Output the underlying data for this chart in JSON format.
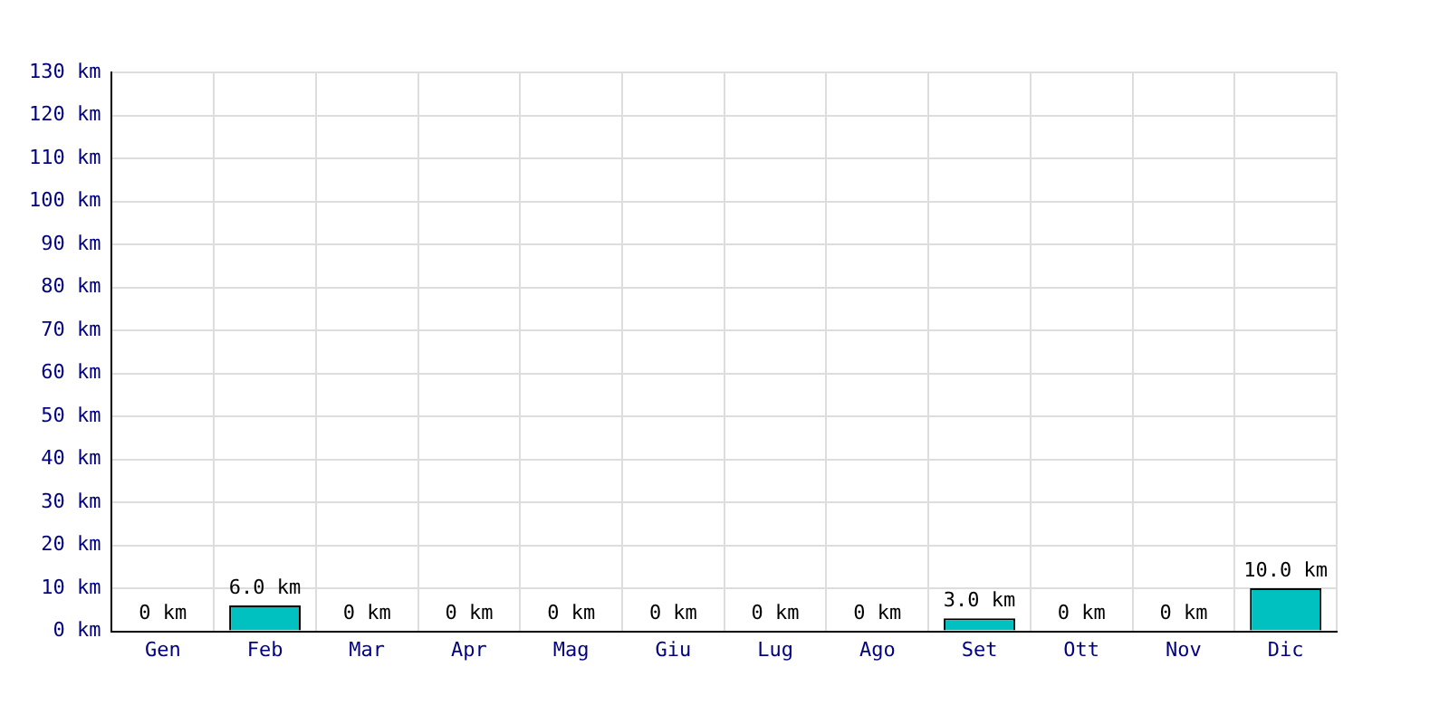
{
  "chart_data": {
    "type": "bar",
    "categories": [
      "Gen",
      "Feb",
      "Mar",
      "Apr",
      "Mag",
      "Giu",
      "Lug",
      "Ago",
      "Set",
      "Ott",
      "Nov",
      "Dic"
    ],
    "values": [
      0,
      6.0,
      0,
      0,
      0,
      0,
      0,
      0,
      3.0,
      0,
      0,
      10.0
    ],
    "value_labels": [
      "0 km",
      "6.0 km",
      "0 km",
      "0 km",
      "0 km",
      "0 km",
      "0 km",
      "0 km",
      "3.0 km",
      "0 km",
      "0 km",
      "10.0 km"
    ],
    "color": "#00c0c0",
    "ylim": [
      0,
      130
    ],
    "yticks": [
      {
        "value": 0,
        "label": "0 km"
      },
      {
        "value": 10,
        "label": "10 km"
      },
      {
        "value": 20,
        "label": "20 km"
      },
      {
        "value": 30,
        "label": "30 km"
      },
      {
        "value": 40,
        "label": "40 km"
      },
      {
        "value": 50,
        "label": "50 km"
      },
      {
        "value": 60,
        "label": "60 km"
      },
      {
        "value": 70,
        "label": "70 km"
      },
      {
        "value": 80,
        "label": "80 km"
      },
      {
        "value": 90,
        "label": "90 km"
      },
      {
        "value": 100,
        "label": "100 km"
      },
      {
        "value": 110,
        "label": "110 km"
      },
      {
        "value": 120,
        "label": "120 km"
      },
      {
        "value": 130,
        "label": "130 km"
      }
    ],
    "grid": true
  }
}
